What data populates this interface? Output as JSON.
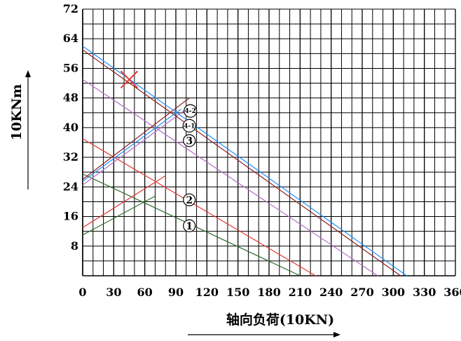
{
  "chart_data": {
    "type": "line",
    "xlabel": "轴向负荷(10KN)",
    "ylabel": "10KNm",
    "xlim": [
      0,
      360
    ],
    "ylim": [
      0,
      72
    ],
    "x_ticks": [
      "0",
      "30",
      "60",
      "90",
      "120",
      "150",
      "180",
      "210",
      "240",
      "270",
      "300",
      "330",
      "360"
    ],
    "y_ticks": [
      "8",
      "16",
      "24",
      "32",
      "40",
      "48",
      "56",
      "64",
      "72"
    ],
    "grid": true,
    "series": [
      {
        "label": "①",
        "color": "#2e6b2e",
        "x": [
          0,
          210
        ],
        "y": [
          27.5,
          0
        ]
      },
      {
        "label": "①",
        "color": "#2e6b2e",
        "x": [
          0,
          70
        ],
        "y": [
          11,
          21.5
        ]
      },
      {
        "label": "②",
        "color": "#e53935",
        "x": [
          0,
          225
        ],
        "y": [
          37,
          0
        ]
      },
      {
        "label": "②",
        "color": "#e53935",
        "x": [
          0,
          80
        ],
        "y": [
          13,
          27
        ]
      },
      {
        "label": "③",
        "color": "#b06fc9",
        "x": [
          0,
          285
        ],
        "y": [
          53,
          0
        ]
      },
      {
        "label": "③",
        "color": "#b06fc9",
        "x": [
          0,
          100
        ],
        "y": [
          24.5,
          45
        ]
      },
      {
        "label": "4-1",
        "color": "#8b1a1a",
        "x": [
          0,
          307
        ],
        "y": [
          61,
          0
        ]
      },
      {
        "label": "4-1",
        "color": "#8b1a1a",
        "x": [
          0,
          103
        ],
        "y": [
          26,
          48
        ]
      },
      {
        "label": "4-2",
        "color": "#1e90ff",
        "x": [
          0,
          313
        ],
        "y": [
          62,
          0
        ]
      },
      {
        "label": "4-2",
        "color": "#1e90ff",
        "x": [
          0,
          95
        ],
        "y": [
          25.5,
          45
        ]
      }
    ],
    "marker": {
      "type": "x",
      "x": 45,
      "y": 53,
      "color": "#e53935"
    }
  }
}
